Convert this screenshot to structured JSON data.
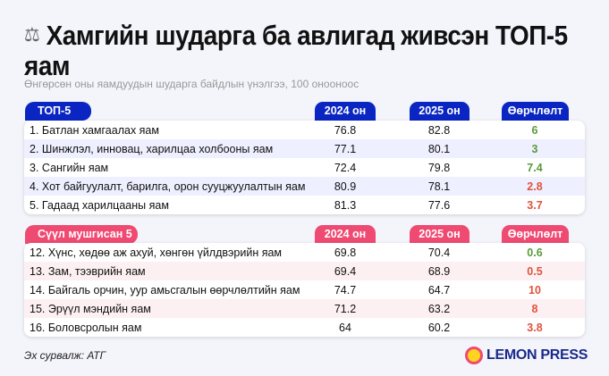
{
  "header": {
    "icon": "scales-icon",
    "title": "Хамгийн шударга ба авлигад живсэн ТОП-5 яам",
    "subtitle": "Өнгөрсөн оны яамдуудын шударга байдлын үнэлгээ, 100 онооноос"
  },
  "columns": {
    "y2024": "2024 он",
    "y2025": "2025 он",
    "change": "Өөрчлөлт"
  },
  "colors": {
    "blue": "#0a25c2",
    "pink": "#ef4a72",
    "up": "#5a9a3a",
    "down": "#e0533d"
  },
  "top": {
    "label": "ТОП-5",
    "rows": [
      {
        "name": "1.  Батлан хамгаалах яам",
        "y2024": "76.8",
        "y2025": "82.8",
        "change": "6",
        "dir": "up"
      },
      {
        "name": "2.  Шинжлэл, инновац, харилцаа холбооны яам",
        "y2024": "77.1",
        "y2025": "80.1",
        "change": "3",
        "dir": "up"
      },
      {
        "name": "3.  Сангийн яам",
        "y2024": "72.4",
        "y2025": "79.8",
        "change": "7.4",
        "dir": "up"
      },
      {
        "name": "4.  Хот байгуулалт, барилга, орон сууцжуулалтын яам",
        "y2024": "80.9",
        "y2025": "78.1",
        "change": "2.8",
        "dir": "down"
      },
      {
        "name": "5.  Гадаад харилцааны яам",
        "y2024": "81.3",
        "y2025": "77.6",
        "change": "3.7",
        "dir": "down"
      }
    ]
  },
  "bottom": {
    "label": "Сүүл мушгисан 5",
    "rows": [
      {
        "name": "12.  Хүнс, хөдөө аж ахуй, хөнгөн үйлдвэрийн яам",
        "y2024": "69.8",
        "y2025": "70.4",
        "change": "0.6",
        "dir": "up"
      },
      {
        "name": "13.  Зам, тээврийн яам",
        "y2024": "69.4",
        "y2025": "68.9",
        "change": "0.5",
        "dir": "down"
      },
      {
        "name": "14.  Байгаль орчин, уур амьсгалын өөрчлөлтийн яам",
        "y2024": "74.7",
        "y2025": "64.7",
        "change": "10",
        "dir": "down"
      },
      {
        "name": "15.  Эрүүл мэндийн яам",
        "y2024": "71.2",
        "y2025": "63.2",
        "change": "8",
        "dir": "down"
      },
      {
        "name": "16.  Боловсролын яам",
        "y2024": "64",
        "y2025": "60.2",
        "change": "3.8",
        "dir": "down"
      }
    ]
  },
  "footer": {
    "source": "Эх сурвалж: АТГ",
    "logo": "LEMON PRESS"
  }
}
